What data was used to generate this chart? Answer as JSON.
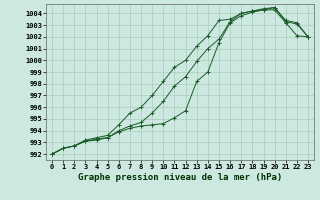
{
  "title": "Graphe pression niveau de la mer (hPa)",
  "bg_color": "#cce8e0",
  "grid_color": "#aaccbb",
  "line_color": "#1a5c28",
  "xlim": [
    -0.5,
    23.5
  ],
  "ylim": [
    991.5,
    1004.8
  ],
  "yticks": [
    992,
    993,
    994,
    995,
    996,
    997,
    998,
    999,
    1000,
    1001,
    1002,
    1003,
    1004
  ],
  "xticks": [
    0,
    1,
    2,
    3,
    4,
    5,
    6,
    7,
    8,
    9,
    10,
    11,
    12,
    13,
    14,
    15,
    16,
    17,
    18,
    19,
    20,
    21,
    22,
    23
  ],
  "series": [
    [
      992.0,
      992.5,
      992.7,
      993.1,
      993.2,
      993.4,
      993.9,
      994.2,
      994.4,
      994.5,
      994.6,
      995.1,
      995.7,
      998.2,
      999.0,
      1001.5,
      1003.2,
      1003.8,
      1004.1,
      1004.3,
      1004.3,
      1003.2,
      1002.1,
      1002.0
    ],
    [
      992.0,
      992.5,
      992.7,
      993.1,
      993.3,
      993.4,
      994.0,
      994.4,
      994.7,
      995.5,
      996.5,
      997.8,
      998.6,
      999.9,
      1001.0,
      1001.8,
      1003.3,
      1004.0,
      1004.2,
      1004.3,
      1004.5,
      1003.3,
      1003.1,
      1002.0
    ],
    [
      992.0,
      992.5,
      992.7,
      993.2,
      993.4,
      993.6,
      994.5,
      995.5,
      996.0,
      997.0,
      998.2,
      999.4,
      1000.0,
      1001.2,
      1002.1,
      1003.4,
      1003.5,
      1004.0,
      1004.2,
      1004.4,
      1004.5,
      1003.4,
      1003.2,
      1002.0
    ]
  ],
  "title_fontsize": 6.5,
  "tick_fontsize": 5.0
}
